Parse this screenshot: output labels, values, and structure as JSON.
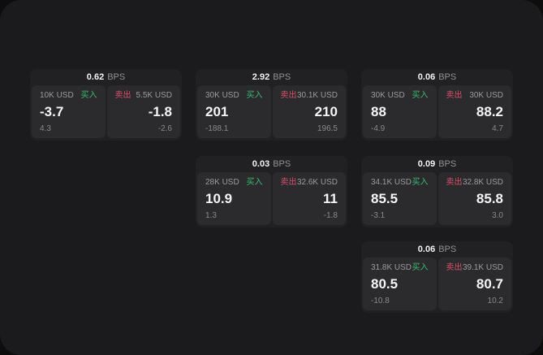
{
  "labels": {
    "bps_unit": "BPS",
    "buy": "买入",
    "sell": "卖出"
  },
  "colors": {
    "outer_background": "#0d0d0e",
    "surface_background": "#1b1b1d",
    "card_background": "#212123",
    "panel_background": "#2b2b2d",
    "text_primary": "#f5f5f6",
    "text_muted": "#9b9b9e",
    "buy_green": "#3cba74",
    "sell_red": "#d8506c"
  },
  "cards": [
    {
      "bps": "0.62",
      "buy": {
        "notional": "10K USD",
        "price": "-3.7",
        "delta": "4.3"
      },
      "sell": {
        "notional": "5.5K USD",
        "price": "-1.8",
        "delta": "-2.6"
      }
    },
    {
      "bps": "2.92",
      "buy": {
        "notional": "30K USD",
        "price": "201",
        "delta": "-188.1"
      },
      "sell": {
        "notional": "30.1K USD",
        "price": "210",
        "delta": "196.5"
      }
    },
    {
      "bps": "0.06",
      "buy": {
        "notional": "30K USD",
        "price": "88",
        "delta": "-4.9"
      },
      "sell": {
        "notional": "30K USD",
        "price": "88.2",
        "delta": "4.7"
      }
    },
    {
      "bps": "0.03",
      "buy": {
        "notional": "28K USD",
        "price": "10.9",
        "delta": "1.3"
      },
      "sell": {
        "notional": "32.6K USD",
        "price": "11",
        "delta": "-1.8"
      }
    },
    {
      "bps": "0.09",
      "buy": {
        "notional": "34.1K USD",
        "price": "85.5",
        "delta": "-3.1"
      },
      "sell": {
        "notional": "32.8K USD",
        "price": "85.8",
        "delta": "3.0"
      }
    },
    {
      "bps": "0.06",
      "buy": {
        "notional": "31.8K USD",
        "price": "80.5",
        "delta": "-10.8"
      },
      "sell": {
        "notional": "39.1K USD",
        "price": "80.7",
        "delta": "10.2"
      }
    }
  ]
}
